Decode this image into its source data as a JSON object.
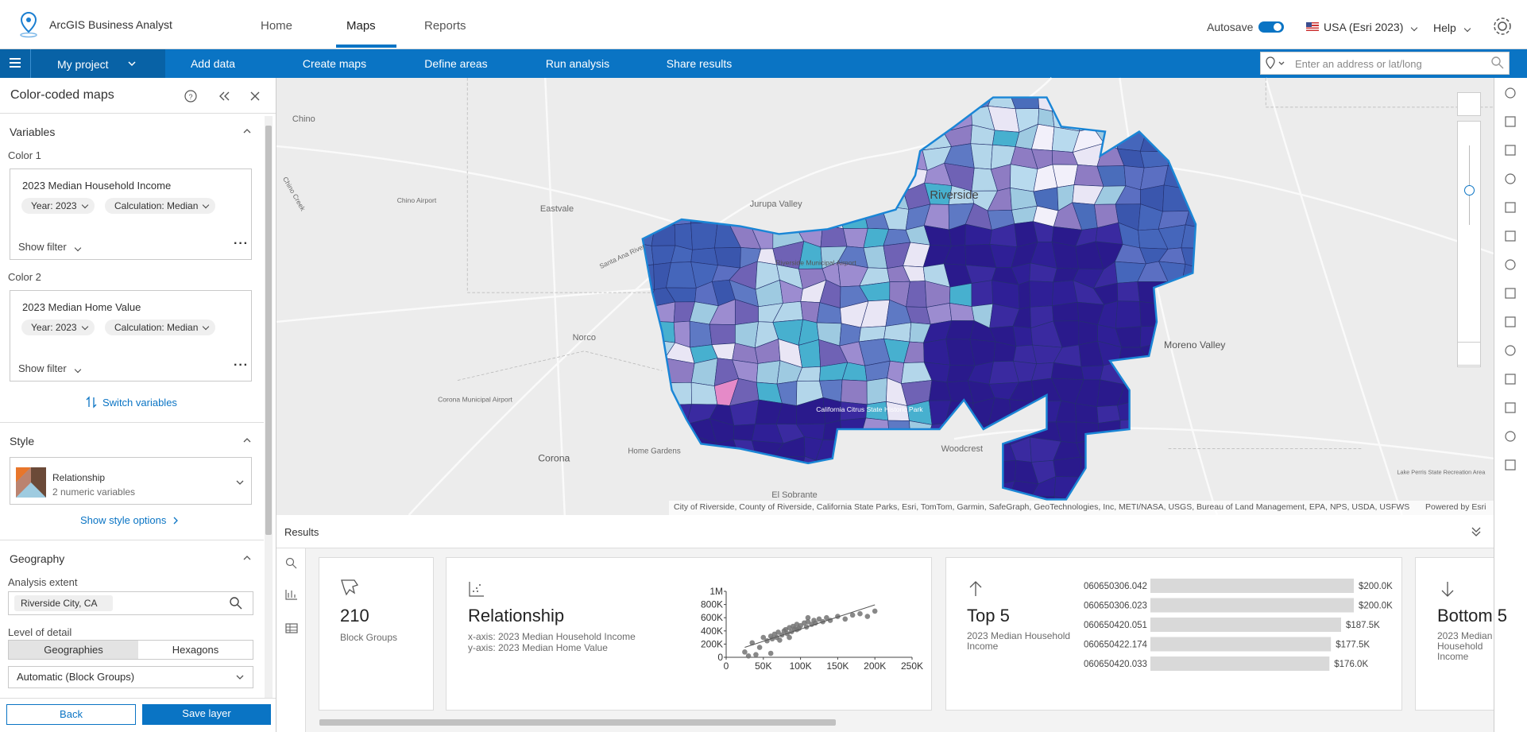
{
  "header": {
    "app_title": "ArcGIS Business Analyst",
    "tabs": [
      "Home",
      "Maps",
      "Reports"
    ],
    "autosave": "Autosave",
    "region": "USA (Esri 2023)",
    "help": "Help"
  },
  "toolbar": {
    "project": "My project",
    "steps": [
      "Add data",
      "Create maps",
      "Define areas",
      "Run analysis",
      "Share results"
    ],
    "search_placeholder": "Enter an address or lat/long"
  },
  "panel": {
    "title": "Color-coded maps",
    "variables_heading": "Variables",
    "color1_label": "Color 1",
    "color1": {
      "name": "2023 Median Household Income",
      "year": "Year: 2023",
      "calculation": "Calculation: Median",
      "show_filter": "Show filter"
    },
    "color2_label": "Color 2",
    "color2": {
      "name": "2023 Median Home Value",
      "year": "Year: 2023",
      "calculation": "Calculation: Median",
      "show_filter": "Show filter"
    },
    "switch": "Switch variables",
    "style_heading": "Style",
    "style_name": "Relationship",
    "style_desc": "2 numeric variables",
    "style_options": "Show style options",
    "geography_heading": "Geography",
    "analysis_extent": "Analysis extent",
    "extent_chip": "Riverside City, CA",
    "level_label": "Level of detail",
    "level_options": [
      "Geographies",
      "Hexagons"
    ],
    "level_select": "Automatic (Block Groups)",
    "back": "Back",
    "save": "Save layer"
  },
  "map": {
    "labels": [
      "Chino",
      "Chino Airport",
      "Chino Creek",
      "Eastvale",
      "Jurupa Valley",
      "Riverside",
      "Riverside Municipal Airport",
      "Santa Ana River",
      "Norco",
      "Corona Municipal Airport",
      "Corona",
      "Home Gardens",
      "California Citrus State Historic Park",
      "Woodcrest",
      "El Sobrante",
      "Moreno Valley",
      "Lake Perris State Recreation Area"
    ],
    "attribution": "City of Riverside, County of Riverside, California State Parks, Esri, TomTom, Garmin, SafeGraph, GeoTechnologies, Inc, METI/NASA, USGS, Bureau of Land Management, EPA, NPS, USDA, USFWS",
    "powered": "Powered by Esri"
  },
  "results": {
    "title": "Results",
    "count_card": {
      "value": 210,
      "label": "Block Groups"
    },
    "relationship_card": {
      "title": "Relationship",
      "x_axis": "x-axis: 2023 Median Household Income",
      "y_axis": "y-axis: 2023 Median Home Value",
      "chart_data": {
        "type": "scatter",
        "color": "#737373",
        "x": [
          35000,
          45000,
          50000,
          55000,
          60000,
          62000,
          65000,
          68000,
          70000,
          72000,
          75000,
          78000,
          80000,
          82000,
          85000,
          88000,
          90000,
          92000,
          95000,
          98000,
          100000,
          105000,
          108000,
          110000,
          115000,
          118000,
          120000,
          125000,
          130000,
          135000,
          140000,
          150000,
          160000,
          170000,
          180000,
          200000,
          190000,
          40000,
          30000,
          60000,
          25000,
          85000,
          95000,
          110000
        ],
        "values": [
          220000,
          150000,
          300000,
          250000,
          320000,
          280000,
          350000,
          300000,
          380000,
          260000,
          340000,
          400000,
          420000,
          360000,
          450000,
          390000,
          470000,
          430000,
          500000,
          440000,
          480000,
          520000,
          460000,
          540000,
          500000,
          560000,
          520000,
          580000,
          540000,
          600000,
          560000,
          620000,
          580000,
          640000,
          660000,
          700000,
          620000,
          40000,
          20000,
          60000,
          80000,
          300000,
          420000,
          600000
        ],
        "xlim": [
          0,
          250000
        ],
        "xticks": [
          0,
          {
            "value": 50000,
            "label": "50K"
          },
          {
            "value": 100000,
            "label": "100K"
          },
          {
            "value": 150000,
            "label": "150K"
          },
          {
            "value": 200000,
            "label": "200K"
          },
          {
            "value": 250000,
            "label": "250K"
          }
        ],
        "ylim": [
          0,
          1000000
        ],
        "yticks": [
          0,
          {
            "value": 200000,
            "label": "200K"
          },
          {
            "value": 400000,
            "label": "400K"
          },
          {
            "value": 600000,
            "label": "600K"
          },
          {
            "value": 800000,
            "label": "800K"
          },
          {
            "value": 1000000,
            "label": "1M"
          }
        ]
      }
    },
    "top_card": {
      "title": "Top 5",
      "subtitle": "2023 Median Household Income",
      "chart_data": {
        "type": "bar",
        "color": "#d9d9d9",
        "categories": [
          "060650306.042",
          "060650306.023",
          "060650420.051",
          "060650422.174",
          "060650420.033"
        ],
        "values": [
          200000,
          200000,
          187500,
          177500,
          176000
        ],
        "value_labels": [
          "$200.0K",
          "$200.0K",
          "$187.5K",
          "$177.5K",
          "$176.0K"
        ]
      }
    },
    "bottom_card": {
      "title": "Bottom 5",
      "subtitle": "2023 Median Household Income"
    }
  }
}
